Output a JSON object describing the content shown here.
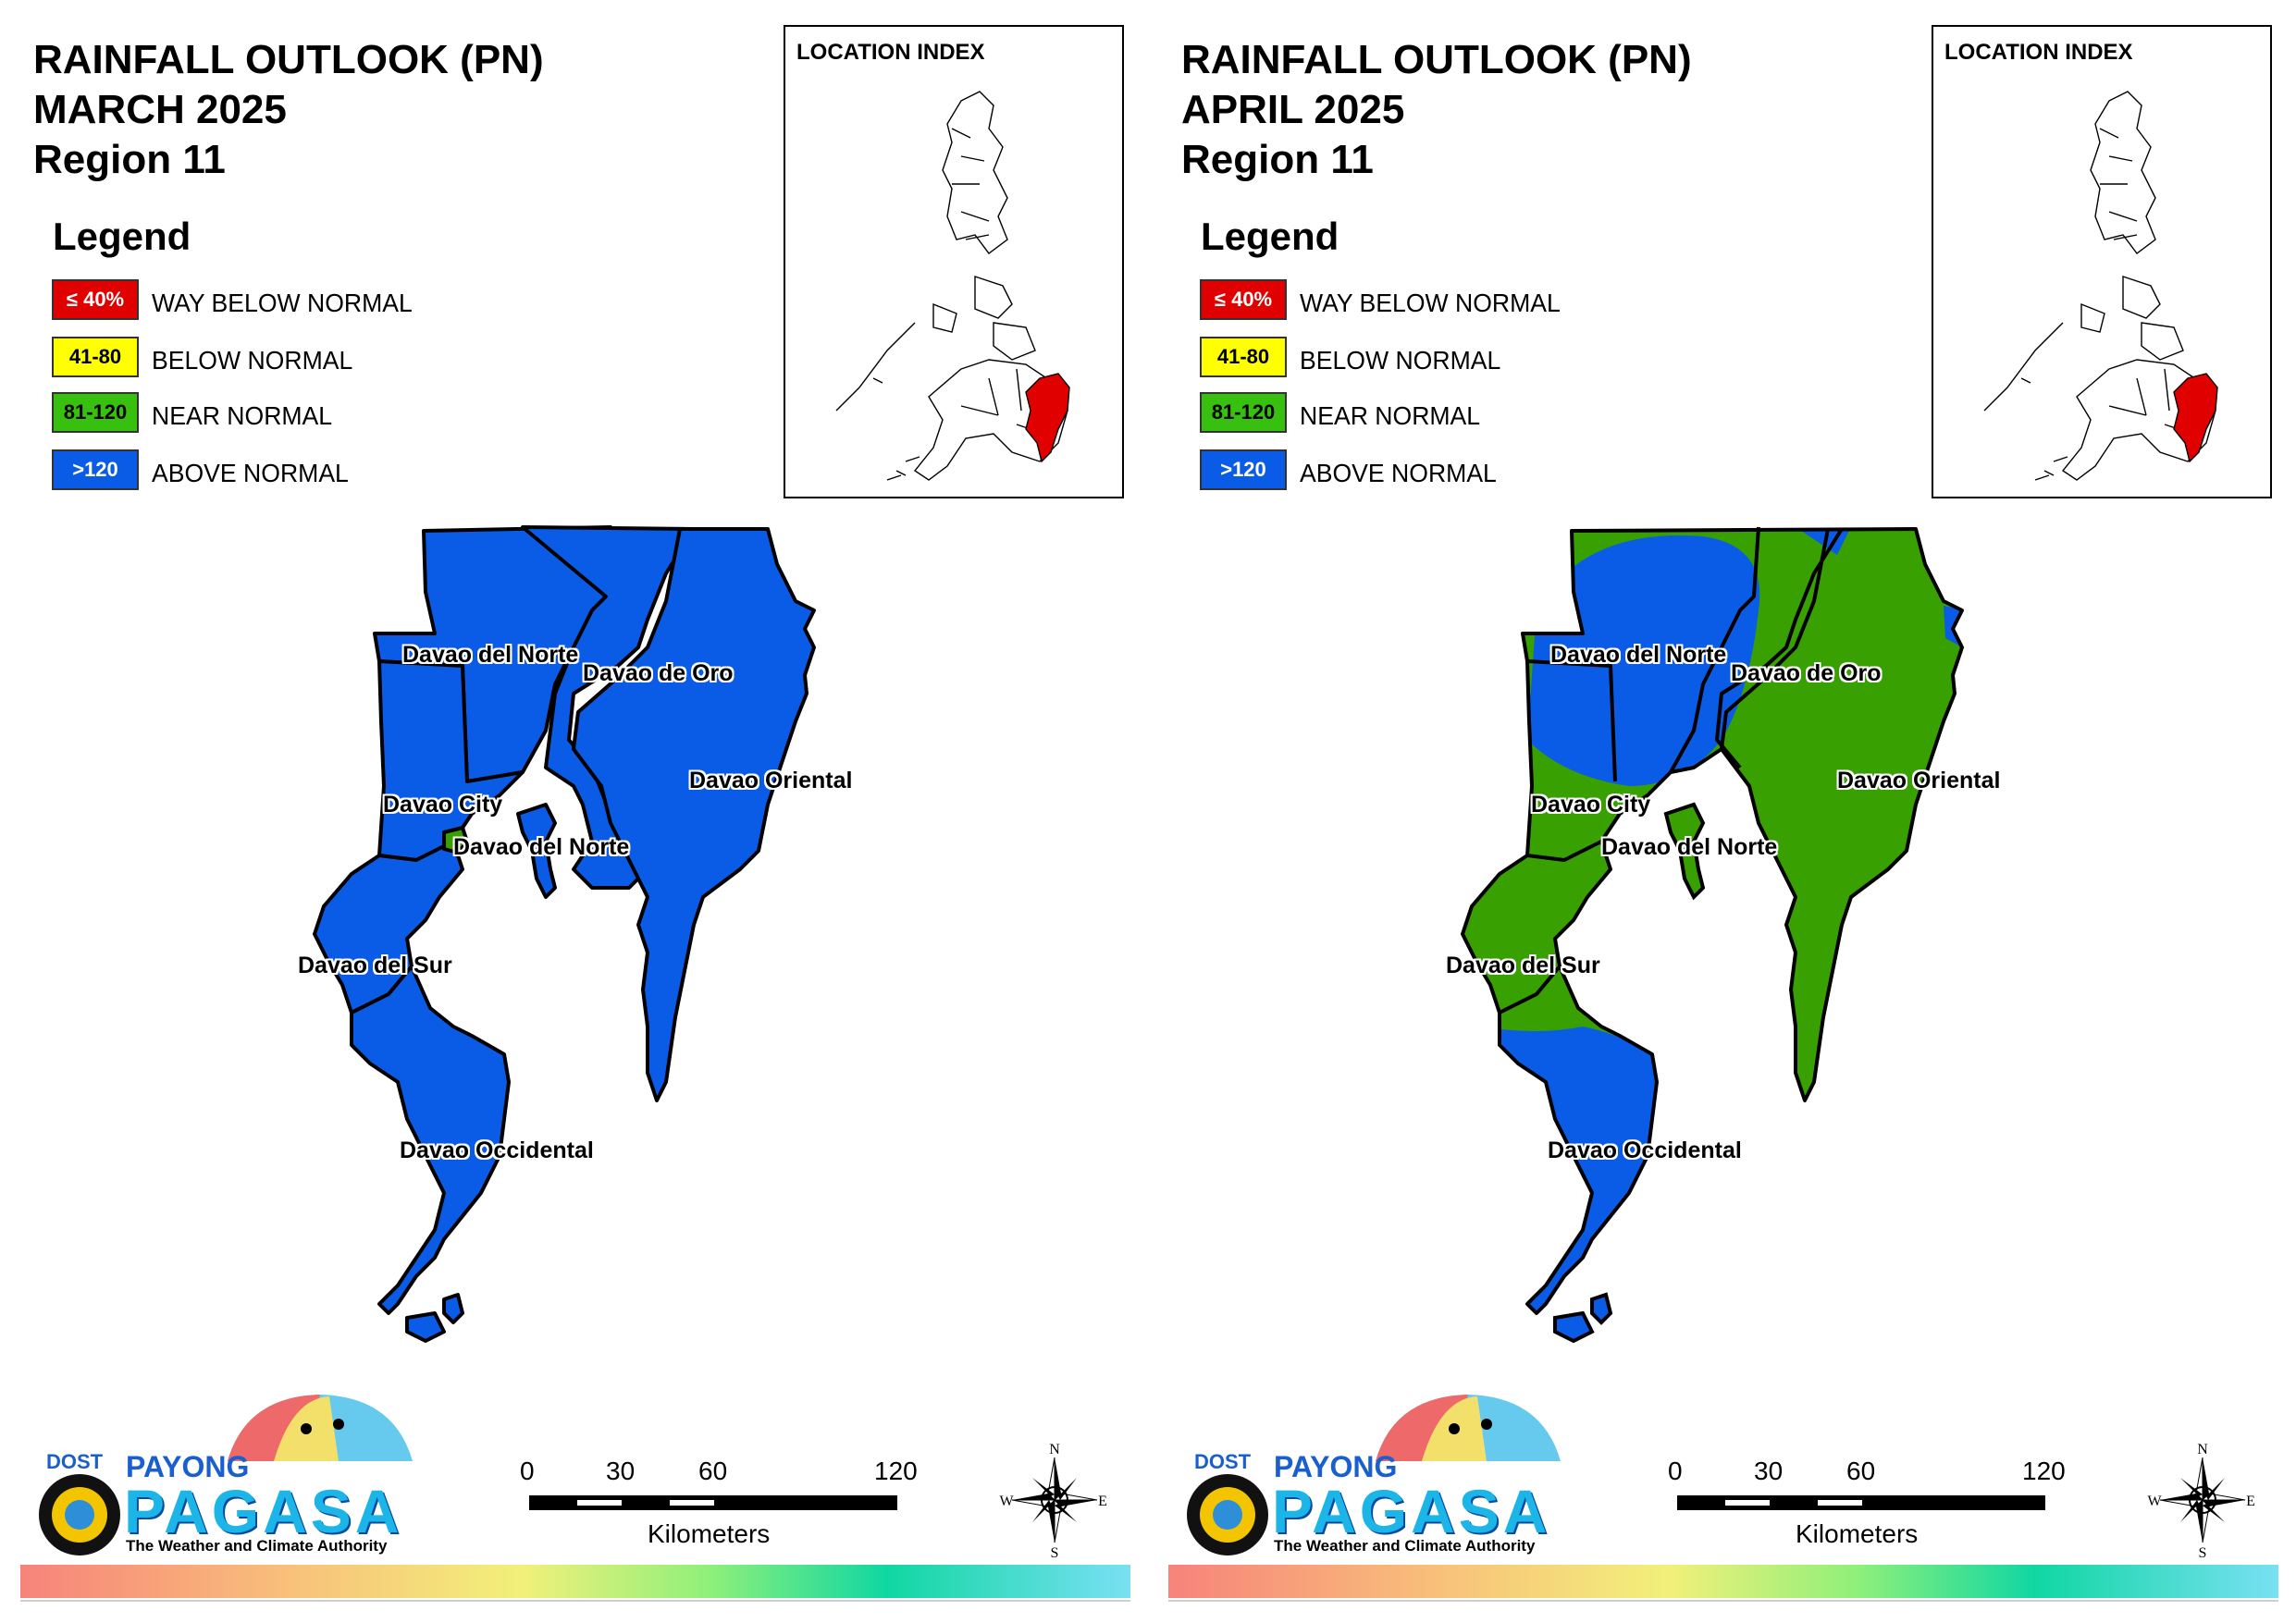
{
  "panels": [
    {
      "title_line1": "RAINFALL OUTLOOK (PN)",
      "title_line2": "MARCH 2025",
      "title_line3": "Region 11",
      "legend_title": "Legend",
      "legend": [
        {
          "range": "≤ 40%",
          "label": "WAY BELOW NORMAL",
          "color": "#e00000",
          "text_color": "#ffffff"
        },
        {
          "range": "41-80",
          "label": "BELOW NORMAL",
          "color": "#ffff00",
          "text_color": "#000000"
        },
        {
          "range": "81-120",
          "label": "NEAR NORMAL",
          "color": "#38b000",
          "text_color": "#000000"
        },
        {
          "range": ">120",
          "label": "ABOVE NORMAL",
          "color": "#0a5ce6",
          "text_color": "#ffffff"
        }
      ],
      "location_index": "LOCATION INDEX",
      "provinces": {
        "davao_del_norte_1": "Davao del Norte",
        "davao_de_oro": "Davao de Oro",
        "davao_oriental": "Davao Oriental",
        "davao_city": "Davao City",
        "davao_del_norte_2": "Davao del Norte",
        "davao_del_sur": "Davao del Sur",
        "davao_occidental": "Davao Occidental"
      },
      "province_category": {
        "davao_del_norte": "ABOVE NORMAL",
        "davao_de_oro": "ABOVE NORMAL",
        "davao_oriental": "ABOVE NORMAL",
        "davao_city": "ABOVE NORMAL",
        "davao_del_sur": "ABOVE NORMAL",
        "davao_occidental": "ABOVE NORMAL",
        "samal_spot": "NEAR NORMAL"
      },
      "logo": {
        "dost": "DOST",
        "payong": "PAYONG",
        "pagasa": "PAGASA",
        "tagline": "The Weather and Climate Authority"
      },
      "scale": {
        "t0": "0",
        "t1": "30",
        "t2": "60",
        "t3": "120",
        "unit": "Kilometers"
      },
      "compass": {
        "n": "N",
        "s": "S",
        "e": "E",
        "w": "W"
      }
    },
    {
      "title_line1": "RAINFALL OUTLOOK (PN)",
      "title_line2": "APRIL 2025",
      "title_line3": "Region 11",
      "legend_title": "Legend",
      "legend": [
        {
          "range": "≤ 40%",
          "label": "WAY BELOW NORMAL",
          "color": "#e00000",
          "text_color": "#ffffff"
        },
        {
          "range": "41-80",
          "label": "BELOW NORMAL",
          "color": "#ffff00",
          "text_color": "#000000"
        },
        {
          "range": "81-120",
          "label": "NEAR NORMAL",
          "color": "#38b000",
          "text_color": "#000000"
        },
        {
          "range": ">120",
          "label": "ABOVE NORMAL",
          "color": "#0a5ce6",
          "text_color": "#ffffff"
        }
      ],
      "location_index": "LOCATION INDEX",
      "provinces": {
        "davao_del_norte_1": "Davao del Norte",
        "davao_de_oro": "Davao de Oro",
        "davao_oriental": "Davao Oriental",
        "davao_city": "Davao City",
        "davao_del_norte_2": "Davao del Norte",
        "davao_del_sur": "Davao del Sur",
        "davao_occidental": "Davao Occidental"
      },
      "province_category": {
        "northwest": "ABOVE NORMAL",
        "davao_de_oro": "NEAR NORMAL",
        "davao_oriental": "NEAR NORMAL",
        "davao_city": "NEAR NORMAL",
        "davao_del_sur": "NEAR NORMAL",
        "davao_occidental": "ABOVE NORMAL"
      },
      "logo": {
        "dost": "DOST",
        "payong": "PAYONG",
        "pagasa": "PAGASA",
        "tagline": "The Weather and Climate Authority"
      },
      "scale": {
        "t0": "0",
        "t1": "30",
        "t2": "60",
        "t3": "120",
        "unit": "Kilometers"
      },
      "compass": {
        "n": "N",
        "s": "S",
        "e": "E",
        "w": "W"
      }
    }
  ]
}
